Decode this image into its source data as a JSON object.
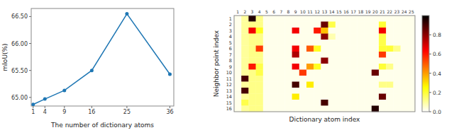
{
  "chart_data": [
    {
      "type": "line",
      "x_label": "The number of dictionary atoms",
      "y_label": "mIoU(%)",
      "x": [
        1,
        4,
        9,
        16,
        25,
        36
      ],
      "values": [
        64.87,
        64.97,
        65.13,
        65.5,
        66.55,
        65.43
      ],
      "xlim": [
        0.5,
        37
      ],
      "xticks": [
        1,
        4,
        9,
        16,
        25,
        36
      ],
      "ylim": [
        64.84,
        66.65
      ],
      "yticks": [
        {
          "value": 65.0,
          "label": "65.00"
        },
        {
          "value": 65.5,
          "label": "65.50"
        },
        {
          "value": 66.0,
          "label": "66.00"
        },
        {
          "value": 66.5,
          "label": "66.50"
        }
      ],
      "marker": "circle"
    },
    {
      "type": "heatmap",
      "x_label": "Dictionary atom index",
      "y_label": "Neighbor point index",
      "categories": [
        "1",
        "2",
        "3",
        "4",
        "5",
        "6",
        "7",
        "8",
        "9",
        "10",
        "11",
        "12",
        "13",
        "14",
        "15",
        "16",
        "17",
        "18",
        "19",
        "20",
        "21",
        "22",
        "23",
        "24",
        "25"
      ],
      "y_categories": [
        "1",
        "2",
        "3",
        "4",
        "5",
        "6",
        "7",
        "8",
        "9",
        "10",
        "11",
        "12",
        "13",
        "14",
        "15",
        "16"
      ],
      "values": [
        [
          0.02,
          0.1,
          0.95,
          0.12,
          0.02,
          0.02,
          0.02,
          0.02,
          0.02,
          0.02,
          0.02,
          0.02,
          0.02,
          0.02,
          0.02,
          0.02,
          0.02,
          0.02,
          0.02,
          0.02,
          0.02,
          0.02,
          0.02,
          0.02,
          0.02
        ],
        [
          0.02,
          0.1,
          0.12,
          0.12,
          0.02,
          0.02,
          0.02,
          0.02,
          0.02,
          0.02,
          0.02,
          0.02,
          0.85,
          0.18,
          0.02,
          0.02,
          0.02,
          0.02,
          0.02,
          0.02,
          0.2,
          0.02,
          0.02,
          0.02,
          0.02
        ],
        [
          0.02,
          0.1,
          0.65,
          0.22,
          0.02,
          0.02,
          0.02,
          0.02,
          0.65,
          0.02,
          0.02,
          0.6,
          0.35,
          0.02,
          0.02,
          0.02,
          0.02,
          0.02,
          0.02,
          0.02,
          0.65,
          0.02,
          0.02,
          0.02,
          0.02
        ],
        [
          0.02,
          0.1,
          0.12,
          0.12,
          0.02,
          0.02,
          0.02,
          0.02,
          0.02,
          0.02,
          0.02,
          0.02,
          0.8,
          0.08,
          0.02,
          0.02,
          0.02,
          0.02,
          0.02,
          0.02,
          0.18,
          0.02,
          0.02,
          0.02,
          0.02
        ],
        [
          0.02,
          0.1,
          0.12,
          0.12,
          0.02,
          0.02,
          0.02,
          0.02,
          0.02,
          0.02,
          0.02,
          0.02,
          0.02,
          0.02,
          0.02,
          0.02,
          0.02,
          0.02,
          0.02,
          0.02,
          0.18,
          0.02,
          0.02,
          0.02,
          0.02
        ],
        [
          0.02,
          0.1,
          0.12,
          0.55,
          0.02,
          0.02,
          0.02,
          0.02,
          0.65,
          0.02,
          0.5,
          0.22,
          0.02,
          0.02,
          0.02,
          0.02,
          0.02,
          0.02,
          0.02,
          0.02,
          0.2,
          0.2,
          0.12,
          0.02,
          0.02
        ],
        [
          0.02,
          0.1,
          0.12,
          0.12,
          0.02,
          0.02,
          0.02,
          0.02,
          0.75,
          0.02,
          0.02,
          0.02,
          0.02,
          0.02,
          0.02,
          0.02,
          0.02,
          0.02,
          0.02,
          0.02,
          0.55,
          0.02,
          0.02,
          0.02,
          0.02
        ],
        [
          0.02,
          0.1,
          0.12,
          0.12,
          0.02,
          0.02,
          0.02,
          0.02,
          0.02,
          0.02,
          0.02,
          0.02,
          0.8,
          0.02,
          0.02,
          0.02,
          0.02,
          0.02,
          0.02,
          0.02,
          0.02,
          0.02,
          0.02,
          0.02,
          0.02
        ],
        [
          0.02,
          0.1,
          0.6,
          0.18,
          0.02,
          0.02,
          0.02,
          0.02,
          0.65,
          0.02,
          0.4,
          0.22,
          0.02,
          0.02,
          0.02,
          0.02,
          0.02,
          0.02,
          0.02,
          0.02,
          0.2,
          0.12,
          0.02,
          0.02,
          0.02
        ],
        [
          0.02,
          0.1,
          0.12,
          0.18,
          0.02,
          0.02,
          0.02,
          0.02,
          0.02,
          0.55,
          0.02,
          0.02,
          0.02,
          0.02,
          0.02,
          0.02,
          0.02,
          0.02,
          0.02,
          0.85,
          0.02,
          0.02,
          0.02,
          0.02,
          0.02
        ],
        [
          0.02,
          0.9,
          0.12,
          0.12,
          0.02,
          0.02,
          0.02,
          0.02,
          0.02,
          0.02,
          0.02,
          0.02,
          0.02,
          0.02,
          0.02,
          0.02,
          0.02,
          0.02,
          0.02,
          0.02,
          0.02,
          0.02,
          0.02,
          0.02,
          0.02
        ],
        [
          0.02,
          0.1,
          0.12,
          0.12,
          0.02,
          0.02,
          0.02,
          0.02,
          0.9,
          0.02,
          0.28,
          0.02,
          0.02,
          0.02,
          0.02,
          0.02,
          0.02,
          0.02,
          0.02,
          0.02,
          0.12,
          0.12,
          0.02,
          0.02,
          0.02
        ],
        [
          0.02,
          0.9,
          0.12,
          0.12,
          0.02,
          0.02,
          0.02,
          0.02,
          0.02,
          0.02,
          0.02,
          0.02,
          0.02,
          0.02,
          0.02,
          0.02,
          0.02,
          0.02,
          0.02,
          0.02,
          0.02,
          0.02,
          0.02,
          0.02,
          0.02
        ],
        [
          0.02,
          0.1,
          0.12,
          0.12,
          0.02,
          0.02,
          0.02,
          0.02,
          0.28,
          0.02,
          0.02,
          0.02,
          0.02,
          0.02,
          0.02,
          0.02,
          0.02,
          0.02,
          0.02,
          0.02,
          0.85,
          0.02,
          0.02,
          0.02,
          0.02
        ],
        [
          0.02,
          0.18,
          0.12,
          0.12,
          0.02,
          0.02,
          0.02,
          0.02,
          0.02,
          0.02,
          0.02,
          0.02,
          0.9,
          0.02,
          0.02,
          0.02,
          0.02,
          0.02,
          0.02,
          0.02,
          0.02,
          0.02,
          0.02,
          0.02,
          0.02
        ],
        [
          0.02,
          0.1,
          0.12,
          0.12,
          0.02,
          0.02,
          0.02,
          0.02,
          0.02,
          0.02,
          0.02,
          0.02,
          0.02,
          0.02,
          0.02,
          0.02,
          0.02,
          0.02,
          0.02,
          0.95,
          0.02,
          0.02,
          0.02,
          0.02,
          0.02
        ]
      ],
      "color_range": [
        0.0,
        1.0
      ],
      "color_ticks": [
        {
          "value": 0.0,
          "label": "0.0"
        },
        0.2,
        0.4,
        0.6,
        0.8
      ]
    }
  ]
}
